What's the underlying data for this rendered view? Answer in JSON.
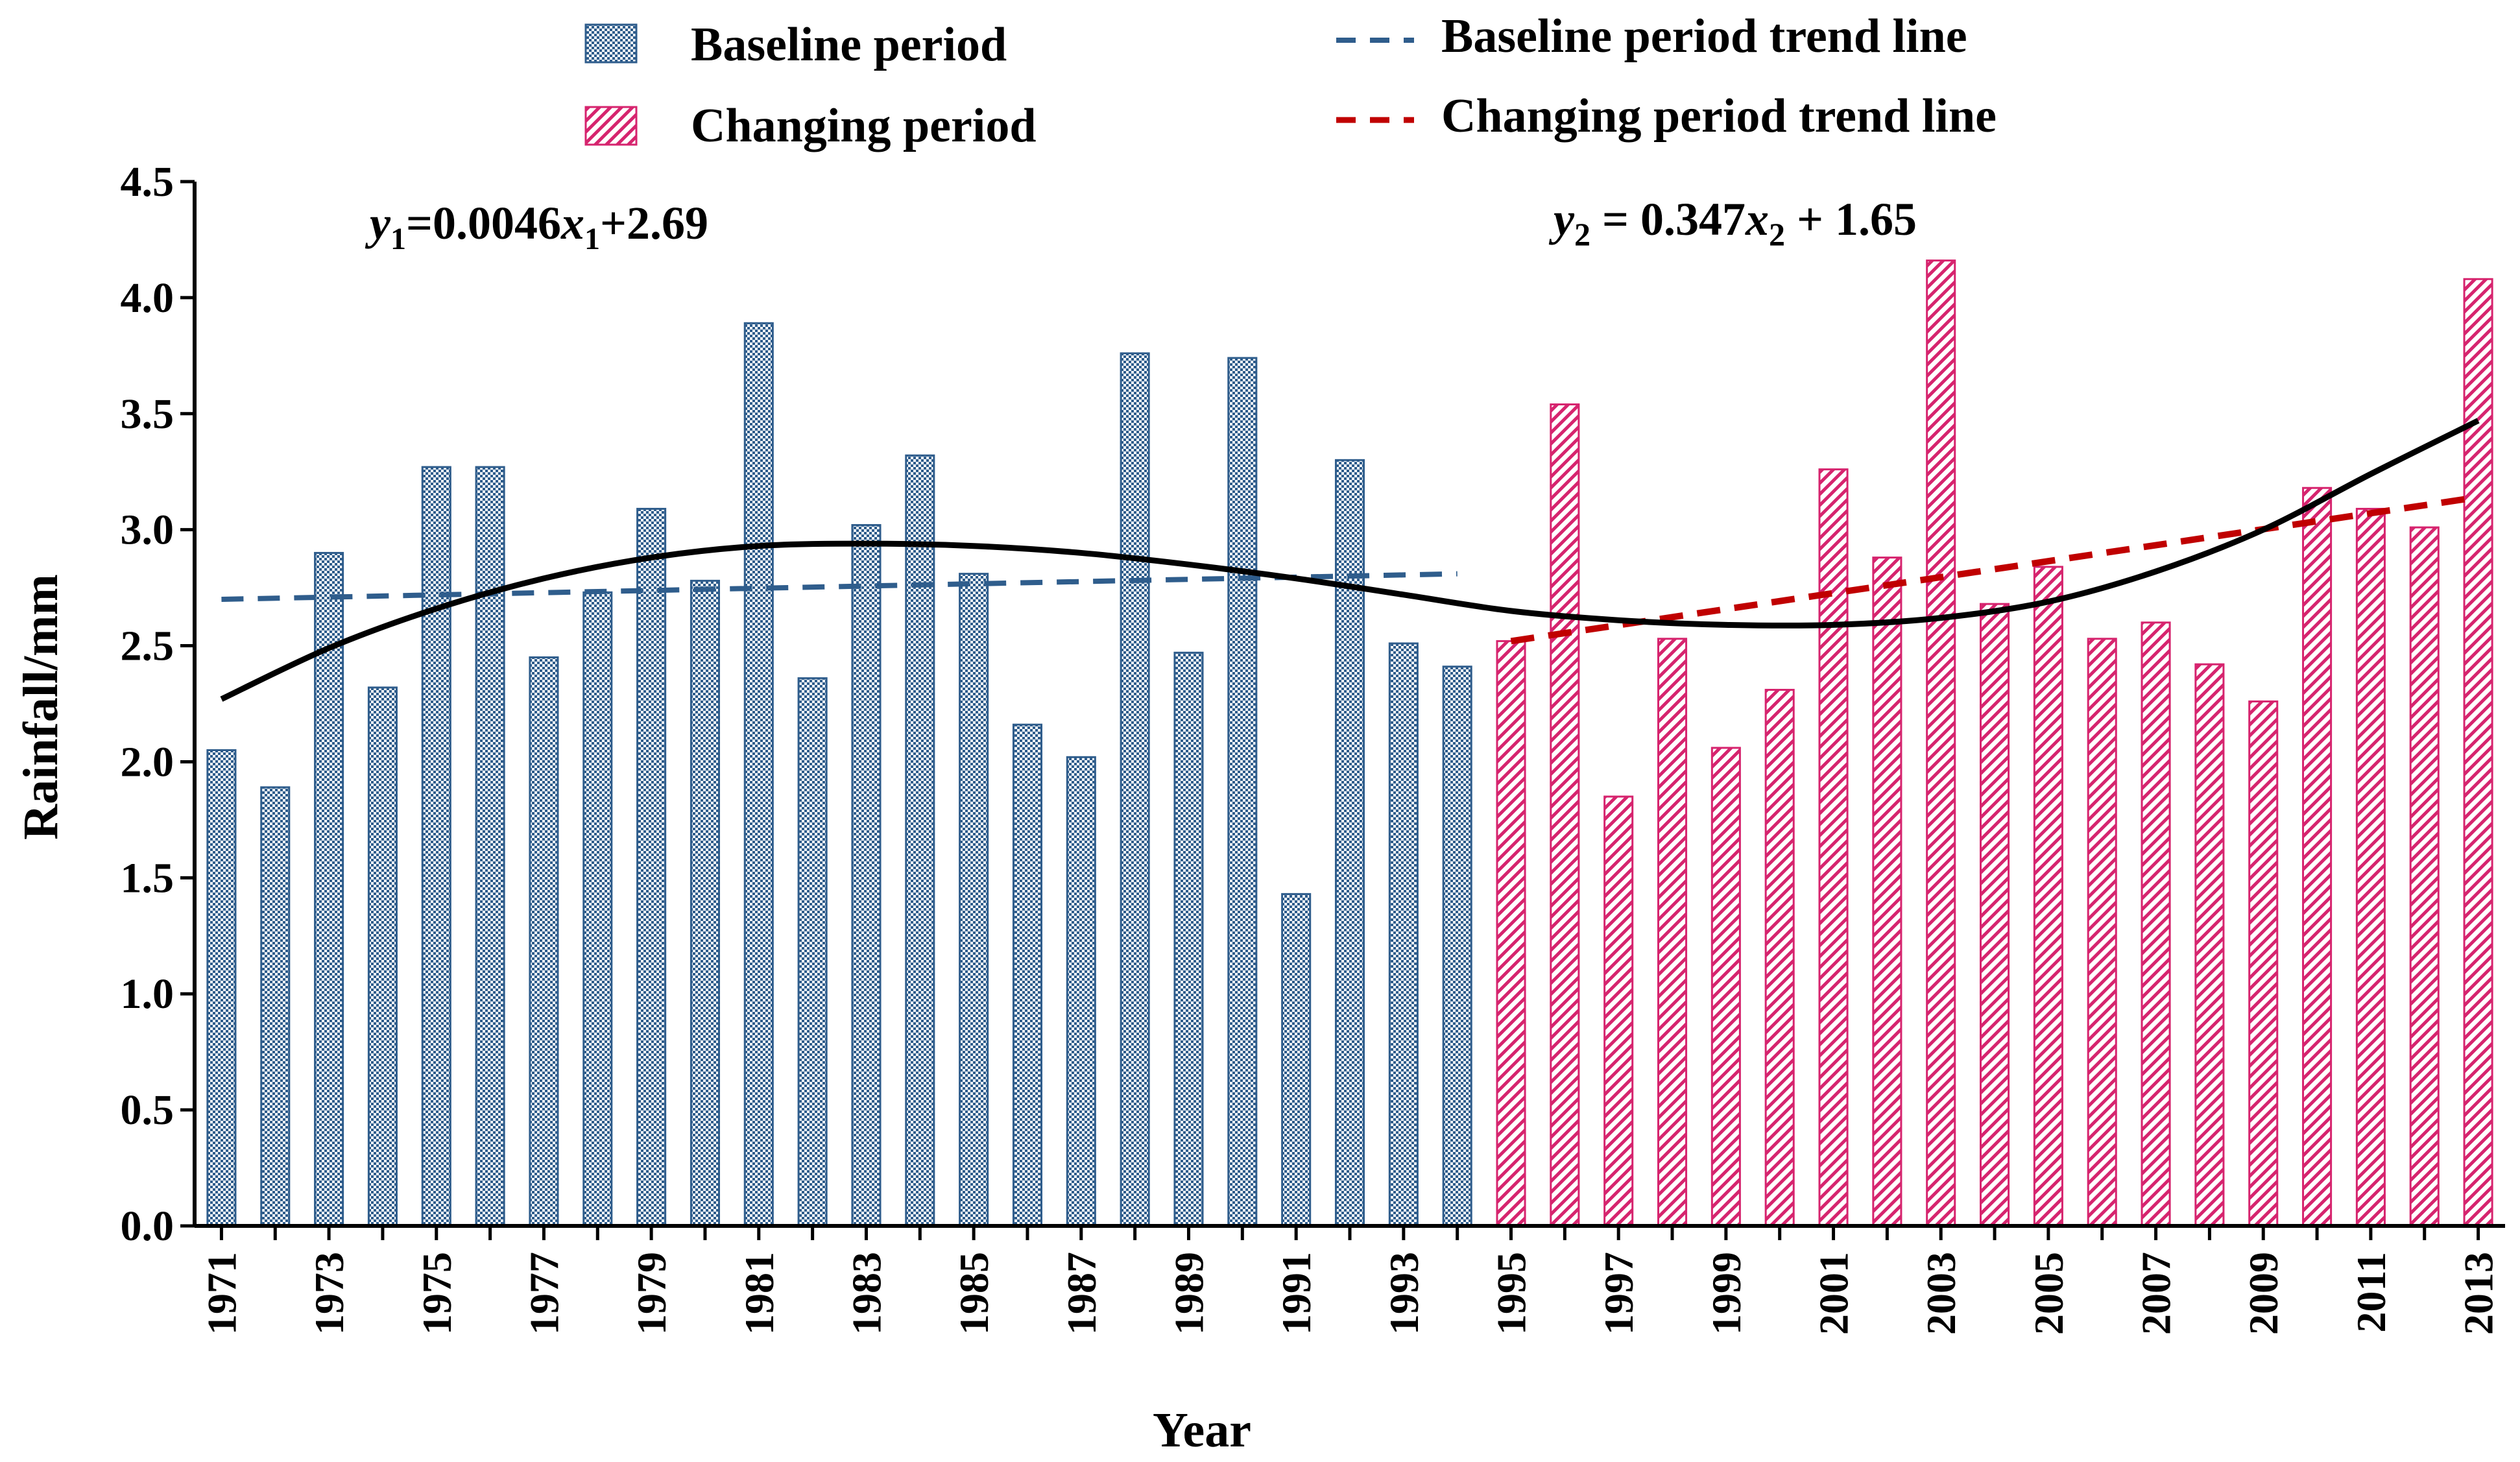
{
  "chart_data": {
    "type": "bar",
    "xlabel": "Year",
    "ylabel": "Rainfall/mm",
    "ylim": [
      0,
      4.5
    ],
    "yticks": [
      "0.0",
      "0.5",
      "1.0",
      "1.5",
      "2.0",
      "2.5",
      "3.0",
      "3.5",
      "4.0",
      "4.5"
    ],
    "ytick_values": [
      0,
      0.5,
      1.0,
      1.5,
      2.0,
      2.5,
      3.0,
      3.5,
      4.0,
      4.5
    ],
    "grid": false,
    "categories": [
      1971,
      1972,
      1973,
      1974,
      1975,
      1976,
      1977,
      1978,
      1979,
      1980,
      1981,
      1982,
      1983,
      1984,
      1985,
      1986,
      1987,
      1988,
      1989,
      1990,
      1991,
      1992,
      1993,
      1994,
      1995,
      1996,
      1997,
      1998,
      1999,
      2000,
      2001,
      2002,
      2003,
      2004,
      2005,
      2006,
      2007,
      2008,
      2009,
      2010,
      2011,
      2012,
      2013
    ],
    "xtick_labels": [
      "1971",
      "1973",
      "1975",
      "1977",
      "1979",
      "1981",
      "1983",
      "1985",
      "1987",
      "1989",
      "1991",
      "1993",
      "1995",
      "1997",
      "1999",
      "2001",
      "2003",
      "2005",
      "2007",
      "2009",
      "2011",
      "2013"
    ],
    "series": [
      {
        "name": "Baseline period",
        "color": "#2f5d8c",
        "pattern": "checker",
        "x": [
          1971,
          1972,
          1973,
          1974,
          1975,
          1976,
          1977,
          1978,
          1979,
          1980,
          1981,
          1982,
          1983,
          1984,
          1985,
          1986,
          1987,
          1988,
          1989,
          1990,
          1991,
          1992,
          1993,
          1994
        ],
        "values": [
          2.05,
          1.89,
          2.9,
          2.32,
          3.27,
          3.27,
          2.45,
          2.73,
          3.09,
          2.78,
          3.89,
          2.36,
          3.02,
          3.32,
          2.81,
          2.16,
          2.02,
          3.76,
          2.47,
          3.74,
          1.43,
          3.3,
          2.51,
          2.41
        ]
      },
      {
        "name": "Changing period",
        "color": "#d6246e",
        "pattern": "diagonal",
        "x": [
          1995,
          1996,
          1997,
          1998,
          1999,
          2000,
          2001,
          2002,
          2003,
          2004,
          2005,
          2006,
          2007,
          2008,
          2009,
          2010,
          2011,
          2012,
          2013
        ],
        "values": [
          2.52,
          3.54,
          1.85,
          2.53,
          2.06,
          2.31,
          3.26,
          2.88,
          4.16,
          2.68,
          2.84,
          2.53,
          2.6,
          2.42,
          2.26,
          3.18,
          3.09,
          3.01,
          4.08
        ]
      }
    ],
    "trend_lines": [
      {
        "name": "Baseline period trend line",
        "color": "#2f5d8c",
        "x": [
          1971,
          1994
        ],
        "y": [
          2.7,
          2.81
        ]
      },
      {
        "name": "Changing period trend line",
        "color": "#c00000",
        "x": [
          1995,
          2013
        ],
        "y": [
          2.52,
          3.14
        ]
      }
    ],
    "smooth_curve": {
      "color": "#000000",
      "x": [
        1971,
        1973,
        1975,
        1977,
        1979,
        1981,
        1983,
        1985,
        1987,
        1989,
        1991,
        1993,
        1995,
        1997,
        1999,
        2001,
        2003,
        2005,
        2007,
        2009,
        2011,
        2013
      ],
      "y": [
        2.27,
        2.49,
        2.66,
        2.79,
        2.88,
        2.93,
        2.94,
        2.93,
        2.9,
        2.85,
        2.79,
        2.72,
        2.65,
        2.61,
        2.59,
        2.59,
        2.62,
        2.69,
        2.82,
        3.0,
        3.24,
        3.47
      ]
    },
    "legend": {
      "placement": "top",
      "entries": [
        "Baseline period",
        "Changing period",
        "Baseline period trend line",
        "Changing period trend line"
      ]
    },
    "annotations": {
      "eq1": {
        "y": "y",
        "sub_y": "1",
        "body": "=0.0046",
        "x": "x",
        "sub_x": "1",
        "tail": "+2.69"
      },
      "eq2": {
        "y": "y",
        "sub_y": "2",
        "body": " = 0.347",
        "x": "x",
        "sub_x": "2",
        "tail": " + 1.65"
      }
    }
  }
}
